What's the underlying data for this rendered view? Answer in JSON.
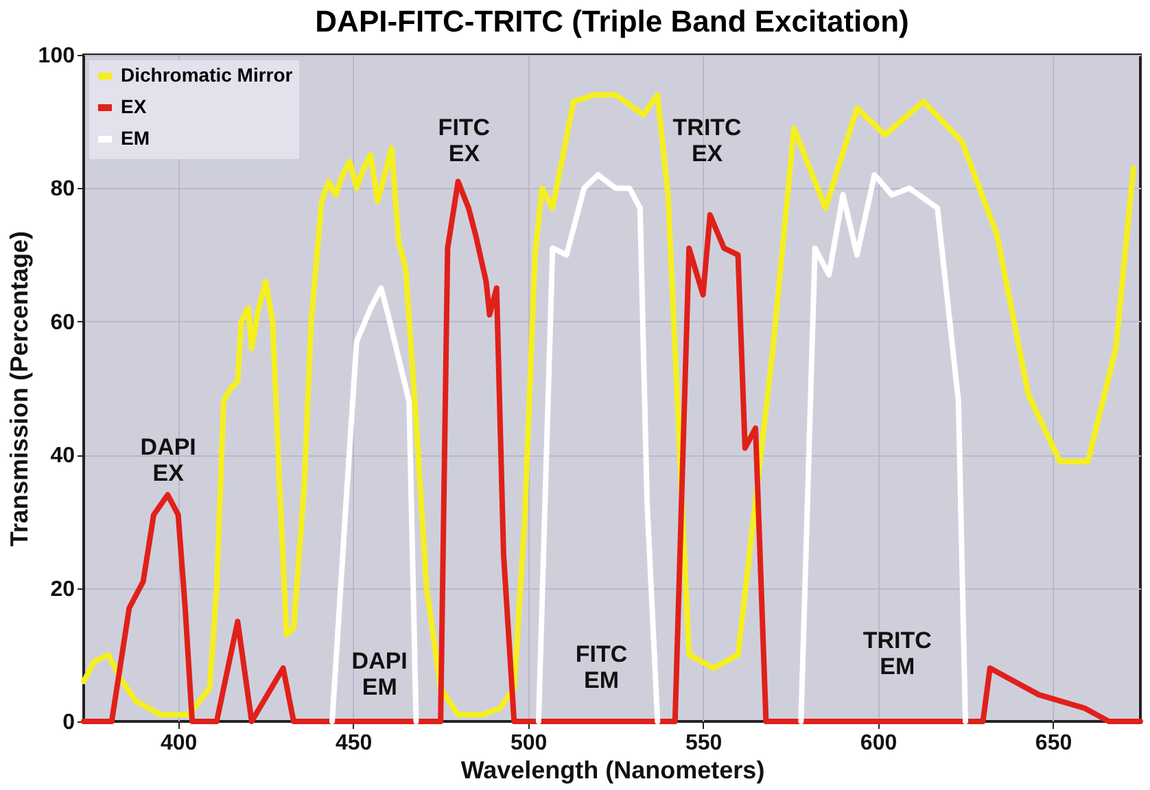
{
  "chart_data": {
    "type": "line",
    "title": "DAPI-FITC-TRITC (Triple Band Excitation)",
    "xlabel": "Wavelength (Nanometers)",
    "ylabel": "Transmission (Percentage)",
    "xlim": [
      373,
      675
    ],
    "ylim": [
      0,
      100
    ],
    "xticks": [
      400,
      450,
      500,
      550,
      600,
      650
    ],
    "yticks": [
      0,
      20,
      40,
      60,
      80,
      100
    ],
    "grid": true,
    "legend": "top left",
    "series": [
      {
        "name": "Dichromatic Mirror",
        "color": "#f5ef1f",
        "x": [
          373,
          376,
          380,
          384,
          388,
          395,
          403,
          409,
          411,
          413,
          415,
          417,
          418,
          420,
          421,
          423,
          425,
          427,
          429,
          431,
          433,
          436,
          438,
          441,
          443,
          445,
          447,
          449,
          451,
          453,
          455,
          457,
          459,
          461,
          463,
          465,
          468,
          471,
          475,
          480,
          487,
          492,
          496,
          499,
          502,
          504,
          507,
          513,
          519,
          525,
          533,
          537,
          540,
          546,
          553,
          560,
          570,
          576,
          585,
          594,
          602,
          613,
          624,
          634,
          643,
          652,
          660,
          668,
          673
        ],
        "values": [
          6,
          9,
          10,
          6,
          3,
          1,
          1,
          5,
          20,
          48,
          50,
          51,
          60,
          62,
          56,
          62,
          66,
          60,
          35,
          13,
          14,
          35,
          60,
          78,
          81,
          79,
          82,
          84,
          80,
          83,
          85,
          78,
          82,
          86,
          72,
          68,
          45,
          20,
          5,
          1,
          1,
          2,
          5,
          30,
          70,
          80,
          77,
          93,
          94,
          94,
          91,
          94,
          79,
          10,
          8,
          10,
          56,
          89,
          77,
          92,
          88,
          93,
          87,
          73,
          49,
          39,
          39,
          56,
          83
        ]
      },
      {
        "name": "EX",
        "color": "#e0201a",
        "x": [
          373,
          381,
          386,
          390,
          393,
          397,
          400,
          402,
          404,
          411,
          417,
          421,
          430,
          433,
          475,
          477,
          480,
          483,
          485,
          488,
          489,
          491,
          493,
          496,
          542,
          546,
          550,
          552,
          556,
          560,
          562,
          565,
          568,
          630,
          632,
          639,
          646,
          659,
          666,
          675
        ],
        "values": [
          0,
          0,
          17,
          21,
          31,
          34,
          31,
          17,
          0,
          0,
          15,
          0,
          8,
          0,
          0,
          71,
          81,
          77,
          73,
          66,
          61,
          65,
          25,
          0,
          0,
          71,
          64,
          76,
          71,
          70,
          41,
          44,
          0,
          0,
          8,
          6,
          4,
          2,
          0,
          0
        ]
      },
      {
        "name": "EM",
        "color": "#ffffff",
        "x": [
          444,
          448,
          451,
          455,
          458,
          460,
          466,
          468,
          485,
          503,
          507,
          511,
          516,
          520,
          525,
          529,
          532,
          534,
          537,
          557,
          578,
          582,
          586,
          590,
          594,
          599,
          604,
          609,
          617,
          623,
          625
        ],
        "values": [
          0,
          33,
          57,
          62,
          65,
          61,
          48,
          0,
          null,
          0,
          71,
          70,
          80,
          82,
          80,
          80,
          77,
          33,
          0,
          null,
          0,
          71,
          67,
          79,
          70,
          82,
          79,
          80,
          77,
          48,
          0
        ]
      }
    ],
    "annotations": [
      "DAPI EX",
      "FITC EX",
      "TRITC EX",
      "DAPI EM",
      "FITC EM",
      "TRITC EM"
    ]
  }
}
